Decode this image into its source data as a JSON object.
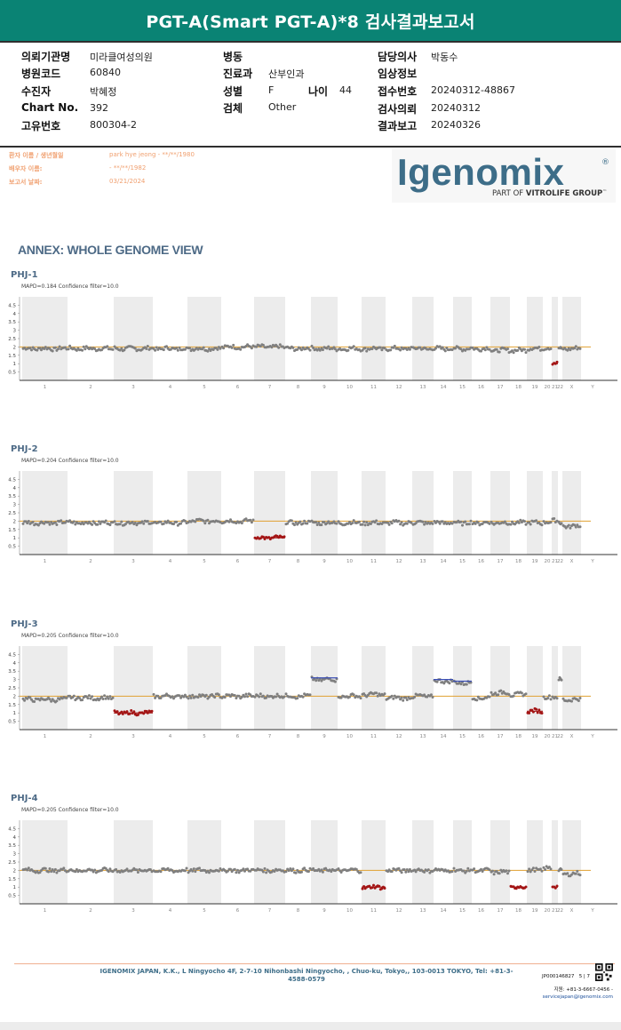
{
  "report": {
    "title": "PGT-A(Smart PGT-A)*8 검사결과보고서"
  },
  "info": {
    "left": [
      {
        "label": "의뢰기관명",
        "value": "미라클여성의원"
      },
      {
        "label": "병원코드",
        "value": "60840"
      },
      {
        "label": "수진자",
        "value": "박혜정"
      },
      {
        "label": "Chart No.",
        "value": "392"
      },
      {
        "label": "고유번호",
        "value": "800304-2"
      }
    ],
    "middle": [
      {
        "label": "병동",
        "value": ""
      },
      {
        "label": "진료과",
        "value": "산부인과"
      },
      {
        "label": "성별",
        "value": "F"
      },
      {
        "label": "검체",
        "value": "Other"
      }
    ],
    "age": {
      "label": "나이",
      "value": "44"
    },
    "right": [
      {
        "label": "담당의사",
        "value": "박동수"
      },
      {
        "label": "임상정보",
        "value": ""
      },
      {
        "label": "접수번호",
        "value": "20240312-48867"
      },
      {
        "label": "검사의뢰",
        "value": "20240312"
      },
      {
        "label": "결과보고",
        "value": "20240326"
      }
    ]
  },
  "patient": {
    "rows": [
      {
        "label": "환자 이름 / 생년월일",
        "value": "park hye jeong - **/**/1980"
      },
      {
        "label": "배우자 이름:",
        "value": "- **/**/1982"
      },
      {
        "label": "보고서 날짜:",
        "value": "03/21/2024"
      }
    ]
  },
  "logo": {
    "brand": "Igenomix",
    "registered": "®",
    "sub_prefix": "PART OF ",
    "sub_bold": "VITROLIFE GROUP",
    "sub_suffix": "™"
  },
  "annex": {
    "title": "ANNEX: WHOLE GENOME VIEW"
  },
  "icon_names": {
    "qr": "qr-code-icon",
    "registered": "registered-mark-icon"
  },
  "colors": {
    "header_bg": "#0a8374",
    "header_text": "#ffffff",
    "annex_title": "#4d6a86",
    "patient_info": "#f0a070",
    "logo": "#3d6d88",
    "normal_data": "#7f7f7f",
    "loss_data": "#a31414",
    "gain_data": "#3b4fb5",
    "baseline": "#e0a030",
    "band": "#ececec"
  },
  "chart_data": [
    {
      "type": "scatter",
      "title": "PHJ-1",
      "subtitle": "MAPD=0.184 Confidence filter=10.0",
      "x_categories": [
        "1",
        "2",
        "3",
        "4",
        "5",
        "6",
        "7",
        "8",
        "9",
        "10",
        "11",
        "12",
        "13",
        "14",
        "15",
        "16",
        "17",
        "18",
        "19",
        "20",
        "21",
        "22",
        "X",
        "Y"
      ],
      "yticks": [
        0.5,
        1,
        1.5,
        2,
        2.5,
        3,
        3.5,
        4,
        4.5
      ],
      "ylim": [
        0,
        5
      ],
      "baseline": 2,
      "grid": false,
      "copy_number": {
        "1": 1.9,
        "2": 1.9,
        "3": 1.9,
        "4": 1.9,
        "5": 1.9,
        "6": 2.0,
        "7": 2.0,
        "8": 1.9,
        "9": 1.9,
        "10": 1.9,
        "11": 1.9,
        "12": 1.9,
        "13": 1.9,
        "14": 1.9,
        "15": 1.9,
        "16": 1.9,
        "17": 1.8,
        "18": 1.8,
        "19": 1.9,
        "20": 1.9,
        "21": 1.0,
        "22": 1.9,
        "X": 1.9,
        "Y": null
      },
      "abnormal": [
        {
          "chromosome": "21",
          "copy_number": 1.0,
          "status": "loss"
        }
      ]
    },
    {
      "type": "scatter",
      "title": "PHJ-2",
      "subtitle": "MAPD=0.204 Confidence filter=10.0",
      "x_categories": [
        "1",
        "2",
        "3",
        "4",
        "5",
        "6",
        "7",
        "8",
        "9",
        "10",
        "11",
        "12",
        "13",
        "14",
        "15",
        "16",
        "17",
        "18",
        "19",
        "20",
        "21",
        "22",
        "X",
        "Y"
      ],
      "yticks": [
        0.5,
        1,
        1.5,
        2,
        2.5,
        3,
        3.5,
        4,
        4.5
      ],
      "ylim": [
        0,
        5
      ],
      "baseline": 2,
      "grid": false,
      "copy_number": {
        "1": 1.9,
        "2": 1.9,
        "3": 1.9,
        "4": 1.9,
        "5": 2.0,
        "6": 2.0,
        "7": 1.0,
        "8": 1.9,
        "9": 1.9,
        "10": 1.9,
        "11": 1.9,
        "12": 1.9,
        "13": 1.9,
        "14": 1.9,
        "15": 1.9,
        "16": 1.9,
        "17": 1.9,
        "18": 1.9,
        "19": 1.9,
        "20": 1.9,
        "21": 2.0,
        "22": 1.9,
        "X": 1.7,
        "Y": null
      },
      "abnormal": [
        {
          "chromosome": "7",
          "copy_number": 1.0,
          "status": "loss"
        }
      ]
    },
    {
      "type": "scatter",
      "title": "PHJ-3",
      "subtitle": "MAPD=0.205 Confidence filter=10.0",
      "x_categories": [
        "1",
        "2",
        "3",
        "4",
        "5",
        "6",
        "7",
        "8",
        "9",
        "10",
        "11",
        "12",
        "13",
        "14",
        "15",
        "16",
        "17",
        "18",
        "19",
        "20",
        "21",
        "22",
        "X",
        "Y"
      ],
      "yticks": [
        0.5,
        1,
        1.5,
        2,
        2.5,
        3,
        3.5,
        4,
        4.5
      ],
      "ylim": [
        0,
        5
      ],
      "baseline": 2,
      "grid": false,
      "copy_number": {
        "1": 1.8,
        "2": 1.9,
        "3": 1.0,
        "4": 2.0,
        "5": 2.0,
        "6": 2.0,
        "7": 2.0,
        "8": 2.0,
        "9": 3.0,
        "10": 2.0,
        "11": 2.1,
        "12": 1.9,
        "13": 2.0,
        "14": 2.9,
        "15": 2.8,
        "16": 1.9,
        "17": 2.2,
        "18": 2.1,
        "19": 1.1,
        "20": 1.9,
        "21": 1.9,
        "22": 3.0,
        "X": 1.8,
        "Y": null
      },
      "abnormal": [
        {
          "chromosome": "3",
          "copy_number": 1.0,
          "status": "loss"
        },
        {
          "chromosome": "9",
          "copy_number": 3.0,
          "status": "gain"
        },
        {
          "chromosome": "14",
          "copy_number": 2.9,
          "status": "gain"
        },
        {
          "chromosome": "15",
          "copy_number": 2.8,
          "status": "gain"
        },
        {
          "chromosome": "19",
          "copy_number": 1.1,
          "status": "loss"
        }
      ]
    },
    {
      "type": "scatter",
      "title": "PHJ-4",
      "subtitle": "MAPD=0.205 Confidence filter=10.0",
      "x_categories": [
        "1",
        "2",
        "3",
        "4",
        "5",
        "6",
        "7",
        "8",
        "9",
        "10",
        "11",
        "12",
        "13",
        "14",
        "15",
        "16",
        "17",
        "18",
        "19",
        "20",
        "21",
        "22",
        "X",
        "Y"
      ],
      "yticks": [
        0.5,
        1,
        1.5,
        2,
        2.5,
        3,
        3.5,
        4,
        4.5
      ],
      "ylim": [
        0,
        5
      ],
      "baseline": 2,
      "grid": false,
      "copy_number": {
        "1": 2.0,
        "2": 2.0,
        "3": 2.0,
        "4": 2.0,
        "5": 2.0,
        "6": 2.0,
        "7": 2.0,
        "8": 2.0,
        "9": 2.0,
        "10": 2.0,
        "11": 1.0,
        "12": 2.0,
        "13": 2.0,
        "14": 2.0,
        "15": 2.0,
        "16": 2.0,
        "17": 1.9,
        "18": 1.0,
        "19": 2.0,
        "20": 2.1,
        "21": 1.0,
        "22": 2.0,
        "X": 1.8,
        "Y": null
      },
      "abnormal": [
        {
          "chromosome": "11",
          "copy_number": 1.0,
          "status": "loss"
        },
        {
          "chromosome": "18",
          "copy_number": 1.0,
          "status": "loss"
        },
        {
          "chromosome": "21",
          "copy_number": 1.0,
          "status": "loss"
        }
      ]
    }
  ],
  "footer": {
    "company": "IGENOMIX JAPAN, K.K., L Ningyocho 4F, 2-7-10 Nihonbashi Ningyocho, , Chuo-ku, Tokyo,, 103-0013 TOKYO, Tel: +81-3-4588-0579",
    "doc_no": "JP000146827",
    "page": "5 | 7",
    "support_tel": "지원: +81-3-6667-0456 -",
    "support_email": "servicejapan@igenomix.com"
  }
}
